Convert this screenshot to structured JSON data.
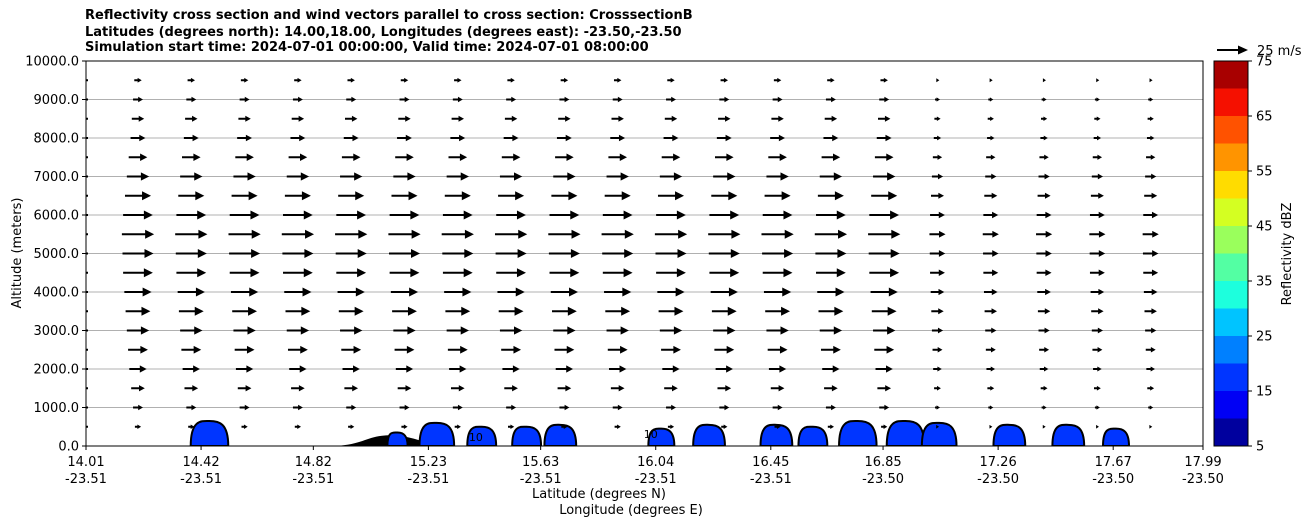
{
  "chart_data": {
    "type": "cross-section",
    "title_lines": [
      "Reflectivity cross section and wind vectors parallel to cross section: CrosssectionB",
      "Latitudes (degrees north): 14.00,18.00, Longitudes (degrees east): -23.50,-23.50",
      "Simulation start time: 2024-07-01 00:00:00, Valid time: 2024-07-01 08:00:00"
    ],
    "ylabel": "Altitude (meters)",
    "xlabel": "Latitude (degrees N)",
    "xlabel2": "Longitude (degrees E)",
    "ylim": [
      0,
      10000
    ],
    "xlim": [
      14.01,
      17.99
    ],
    "y_ticks": [
      "0.0",
      "1000.0",
      "2000.0",
      "3000.0",
      "4000.0",
      "5000.0",
      "6000.0",
      "7000.0",
      "8000.0",
      "9000.0",
      "10000.0"
    ],
    "y_tick_values": [
      0,
      1000,
      2000,
      3000,
      4000,
      5000,
      6000,
      7000,
      8000,
      9000,
      10000
    ],
    "x_tick_values": [
      14.01,
      14.42,
      14.82,
      15.23,
      15.63,
      16.04,
      16.45,
      16.85,
      17.26,
      17.67,
      17.99
    ],
    "x_tick_lat": [
      "14.01",
      "14.42",
      "14.82",
      "15.23",
      "15.63",
      "16.04",
      "16.45",
      "16.85",
      "17.26",
      "17.67",
      "17.99"
    ],
    "x_tick_lon": [
      "-23.51",
      "-23.51",
      "-23.51",
      "-23.51",
      "-23.51",
      "-23.51",
      "-23.51",
      "-23.50",
      "-23.50",
      "-23.50",
      "-23.50"
    ],
    "grid": "horizontal",
    "wind_key_label": "25 m/s",
    "wind_key_speed": 25,
    "wind_levels_m": [
      500,
      1000,
      1500,
      2000,
      2500,
      3000,
      3500,
      4000,
      4500,
      5000,
      5500,
      6000,
      6500,
      7000,
      7500,
      8000,
      8500,
      9000,
      9500
    ],
    "wind_speed_by_level": [
      5,
      8,
      11,
      14,
      16,
      18,
      20,
      22,
      24,
      25,
      26,
      24,
      21,
      18,
      15,
      12,
      10,
      8,
      6
    ],
    "colorbar": {
      "label": "Reflectivity dBZ",
      "bounds": [
        5,
        10,
        15,
        20,
        25,
        30,
        35,
        40,
        45,
        50,
        55,
        60,
        65,
        70,
        75
      ],
      "tick_labels": [
        "5",
        "15",
        "25",
        "35",
        "45",
        "55",
        "65",
        "75"
      ],
      "colors": [
        "#00009e",
        "#0000f5",
        "#0035ff",
        "#0080ff",
        "#00c4ff",
        "#1dffdd",
        "#53ffa3",
        "#9aff5c",
        "#d4ff22",
        "#ffdc00",
        "#ff9400",
        "#ff5200",
        "#f51000",
        "#a80000"
      ]
    },
    "echo_cells": [
      {
        "lat": 14.45,
        "top_m": 650,
        "dbz": 15
      },
      {
        "lat": 15.12,
        "top_m": 350,
        "dbz": 15
      },
      {
        "lat": 15.26,
        "top_m": 600,
        "dbz": 15
      },
      {
        "lat": 15.42,
        "top_m": 500,
        "dbz": 15
      },
      {
        "lat": 15.58,
        "top_m": 500,
        "dbz": 15
      },
      {
        "lat": 15.7,
        "top_m": 550,
        "dbz": 15
      },
      {
        "lat": 16.06,
        "top_m": 450,
        "dbz": 15
      },
      {
        "lat": 16.23,
        "top_m": 550,
        "dbz": 15
      },
      {
        "lat": 16.47,
        "top_m": 550,
        "dbz": 15
      },
      {
        "lat": 16.6,
        "top_m": 500,
        "dbz": 15
      },
      {
        "lat": 16.76,
        "top_m": 650,
        "dbz": 15
      },
      {
        "lat": 16.93,
        "top_m": 650,
        "dbz": 15
      },
      {
        "lat": 17.05,
        "top_m": 600,
        "dbz": 15
      },
      {
        "lat": 17.3,
        "top_m": 550,
        "dbz": 15
      },
      {
        "lat": 17.51,
        "top_m": 550,
        "dbz": 15
      },
      {
        "lat": 17.68,
        "top_m": 450,
        "dbz": 15
      }
    ],
    "terrain": {
      "lat_start": 14.9,
      "lat_peak": 15.1,
      "lat_end": 15.25,
      "peak_m": 280
    },
    "contour_labels": [
      "10"
    ]
  }
}
